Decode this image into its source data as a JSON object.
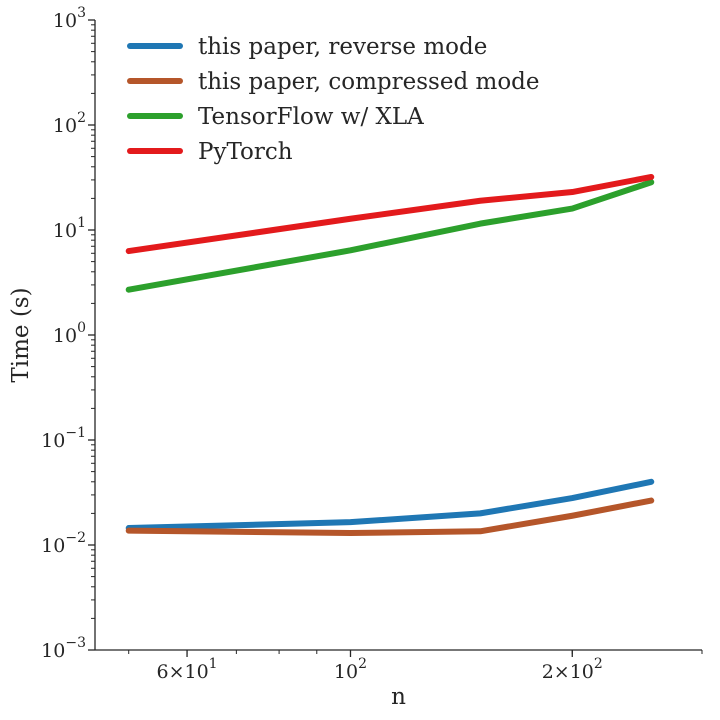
{
  "chart_data": {
    "type": "line",
    "xlabel": "n",
    "ylabel": "Time (s)",
    "x_scale": "log",
    "y_scale": "log",
    "xlim": [
      45,
      300
    ],
    "ylim": [
      0.001,
      1000
    ],
    "grid": false,
    "legend_position": "top-left",
    "x_major_ticks": [
      {
        "value": 60,
        "base": "6",
        "times": "×",
        "exp_base": "10",
        "exp": "1"
      },
      {
        "value": 100,
        "base": "",
        "times": "",
        "exp_base": "10",
        "exp": "2"
      },
      {
        "value": 200,
        "base": "2",
        "times": "×",
        "exp_base": "10",
        "exp": "2"
      }
    ],
    "y_major_ticks": [
      {
        "value": 0.001,
        "exp_base": "10",
        "exp": "−3"
      },
      {
        "value": 0.01,
        "exp_base": "10",
        "exp": "−2"
      },
      {
        "value": 0.1,
        "exp_base": "10",
        "exp": "−1"
      },
      {
        "value": 1,
        "exp_base": "10",
        "exp": "0"
      },
      {
        "value": 10,
        "exp_base": "10",
        "exp": "1"
      },
      {
        "value": 100,
        "exp_base": "10",
        "exp": "2"
      },
      {
        "value": 1000,
        "exp_base": "10",
        "exp": "3"
      }
    ],
    "series": [
      {
        "name": "this paper, reverse mode",
        "color": "#1f77b4",
        "x": [
          50,
          100,
          150,
          200,
          256
        ],
        "y": [
          0.0145,
          0.0165,
          0.02,
          0.028,
          0.04
        ]
      },
      {
        "name": "this paper, compressed mode",
        "color": "#b5562a",
        "x": [
          50,
          100,
          150,
          200,
          256
        ],
        "y": [
          0.0137,
          0.013,
          0.0135,
          0.019,
          0.0265
        ]
      },
      {
        "name": "TensorFlow w/ XLA",
        "color": "#2ca02c",
        "x": [
          50,
          100,
          150,
          200,
          256
        ],
        "y": [
          2.7,
          6.4,
          11.5,
          16,
          28.5
        ]
      },
      {
        "name": "PyTorch",
        "color": "#e31a1c",
        "x": [
          50,
          100,
          150,
          200,
          256
        ],
        "y": [
          6.3,
          12.8,
          19,
          23,
          32
        ]
      }
    ]
  }
}
